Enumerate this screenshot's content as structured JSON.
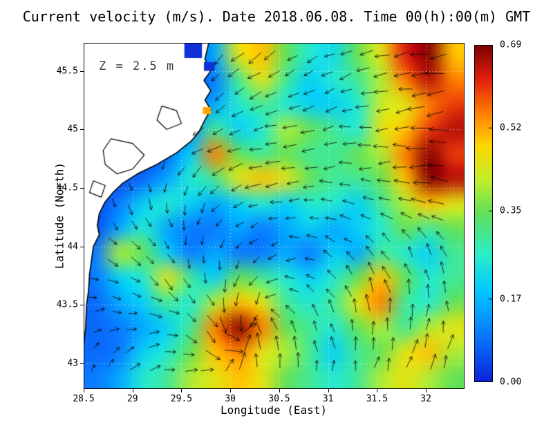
{
  "title": "Current velocity (m/s). Date 2018.06.08. Time 00(h):00(m) GMT",
  "annotation": "Z = 2.5 m",
  "axes": {
    "x": {
      "label": "Longitude (East)",
      "ticks": [
        {
          "label": "28.5",
          "value": 28.5
        },
        {
          "label": "29",
          "value": 29
        },
        {
          "label": "29.5",
          "value": 29.5
        },
        {
          "label": "30",
          "value": 30
        },
        {
          "label": "30.5",
          "value": 30.5
        },
        {
          "label": "31",
          "value": 31
        },
        {
          "label": "31.5",
          "value": 31.5
        },
        {
          "label": "32",
          "value": 32
        }
      ]
    },
    "y": {
      "label": "Latitude (North)",
      "ticks": [
        {
          "label": "43",
          "value": 43
        },
        {
          "label": "43.5",
          "value": 43.5
        },
        {
          "label": "44",
          "value": 44
        },
        {
          "label": "44.5",
          "value": 44.5
        },
        {
          "label": "45",
          "value": 45
        },
        {
          "label": "45.5",
          "value": 45.5
        }
      ]
    }
  },
  "colorbar": {
    "min": 0,
    "max": 0.69,
    "ticks": [
      {
        "label": "0.69",
        "value": 0.69
      },
      {
        "label": "0.52",
        "value": 0.52
      },
      {
        "label": "0.35",
        "value": 0.35
      },
      {
        "label": "0.17",
        "value": 0.17
      },
      {
        "label": "0.00",
        "value": 0.0
      }
    ],
    "colormap": [
      {
        "t": 0.0,
        "c": "#0a22dc"
      },
      {
        "t": 0.14,
        "c": "#0a78ff"
      },
      {
        "t": 0.27,
        "c": "#00c8ff"
      },
      {
        "t": 0.38,
        "c": "#2ceec8"
      },
      {
        "t": 0.5,
        "c": "#5fe05a"
      },
      {
        "t": 0.6,
        "c": "#c2ee2c"
      },
      {
        "t": 0.7,
        "c": "#ffd800"
      },
      {
        "t": 0.8,
        "c": "#ff7d00"
      },
      {
        "t": 0.9,
        "c": "#e11e0f"
      },
      {
        "t": 1.0,
        "c": "#7a0000"
      }
    ]
  },
  "chart_data": {
    "type": "heatmap",
    "subtype": "velocity-field-with-quiver-arrows",
    "title": "Current velocity (m/s). Date 2018.06.08. Time 00(h):00(m) GMT",
    "depth_label": "Z = 2.5 m",
    "units": "m/s",
    "xlabel": "Longitude (East)",
    "ylabel": "Latitude (North)",
    "xlim": [
      28.5,
      32.395
    ],
    "ylim": [
      42.78,
      45.74
    ],
    "value_range": [
      0,
      0.69
    ],
    "grid": true,
    "velocity_grid": {
      "lon_range": [
        28.5,
        32.395
      ],
      "lat_range": [
        42.78,
        45.74
      ],
      "ncols": 16,
      "nrows": 14,
      "values": [
        [
          0.05,
          0.05,
          0.05,
          0.05,
          0.08,
          0.15,
          0.45,
          0.5,
          0.35,
          0.25,
          0.22,
          0.35,
          0.45,
          0.62,
          0.68,
          0.5
        ],
        [
          0.05,
          0.05,
          0.05,
          0.05,
          0.08,
          0.1,
          0.3,
          0.45,
          0.3,
          0.2,
          0.25,
          0.3,
          0.4,
          0.55,
          0.65,
          0.55
        ],
        [
          0.05,
          0.05,
          0.05,
          0.05,
          0.1,
          0.15,
          0.25,
          0.3,
          0.25,
          0.2,
          0.2,
          0.25,
          0.42,
          0.45,
          0.55,
          0.6
        ],
        [
          0.05,
          0.05,
          0.05,
          0.05,
          0.12,
          0.3,
          0.2,
          0.25,
          0.4,
          0.35,
          0.3,
          0.25,
          0.45,
          0.5,
          0.6,
          0.65
        ],
        [
          0.05,
          0.05,
          0.05,
          0.08,
          0.2,
          0.55,
          0.35,
          0.3,
          0.35,
          0.3,
          0.3,
          0.35,
          0.4,
          0.55,
          0.68,
          0.6
        ],
        [
          0.05,
          0.05,
          0.08,
          0.15,
          0.25,
          0.3,
          0.45,
          0.5,
          0.45,
          0.35,
          0.3,
          0.3,
          0.35,
          0.5,
          0.68,
          0.65
        ],
        [
          0.05,
          0.1,
          0.2,
          0.25,
          0.2,
          0.15,
          0.2,
          0.25,
          0.2,
          0.25,
          0.25,
          0.2,
          0.3,
          0.4,
          0.5,
          0.45
        ],
        [
          0.05,
          0.15,
          0.25,
          0.15,
          0.1,
          0.1,
          0.15,
          0.1,
          0.15,
          0.2,
          0.15,
          0.2,
          0.25,
          0.35,
          0.3,
          0.35
        ],
        [
          0.1,
          0.4,
          0.35,
          0.2,
          0.1,
          0.15,
          0.1,
          0.1,
          0.15,
          0.1,
          0.2,
          0.15,
          0.3,
          0.25,
          0.2,
          0.3
        ],
        [
          0.1,
          0.2,
          0.25,
          0.45,
          0.3,
          0.2,
          0.35,
          0.3,
          0.25,
          0.2,
          0.25,
          0.35,
          0.5,
          0.35,
          0.25,
          0.3
        ],
        [
          0.08,
          0.15,
          0.2,
          0.3,
          0.25,
          0.4,
          0.5,
          0.45,
          0.3,
          0.25,
          0.3,
          0.45,
          0.55,
          0.3,
          0.25,
          0.35
        ],
        [
          0.08,
          0.1,
          0.15,
          0.2,
          0.3,
          0.55,
          0.68,
          0.55,
          0.35,
          0.3,
          0.25,
          0.35,
          0.4,
          0.3,
          0.4,
          0.45
        ],
        [
          0.08,
          0.1,
          0.2,
          0.25,
          0.35,
          0.5,
          0.55,
          0.45,
          0.4,
          0.3,
          0.2,
          0.3,
          0.35,
          0.45,
          0.5,
          0.4
        ],
        [
          0.1,
          0.15,
          0.25,
          0.3,
          0.4,
          0.45,
          0.5,
          0.45,
          0.35,
          0.3,
          0.25,
          0.3,
          0.4,
          0.45,
          0.4,
          0.35
        ]
      ]
    },
    "direction_grid_deg": {
      "note": "flow direction, degrees CCW from east",
      "ncols": 10,
      "nrows": 9,
      "angles": [
        [
          270,
          265,
          250,
          235,
          220,
          210,
          205,
          200,
          195,
          190
        ],
        [
          275,
          265,
          245,
          225,
          210,
          205,
          200,
          195,
          190,
          185
        ],
        [
          285,
          275,
          235,
          205,
          195,
          190,
          190,
          185,
          183,
          180
        ],
        [
          295,
          285,
          255,
          215,
          190,
          185,
          182,
          180,
          178,
          175
        ],
        [
          305,
          300,
          285,
          245,
          205,
          185,
          172,
          162,
          155,
          150
        ],
        [
          330,
          320,
          300,
          270,
          230,
          190,
          145,
          125,
          115,
          120
        ],
        [
          0,
          350,
          330,
          300,
          260,
          150,
          120,
          100,
          92,
          100
        ],
        [
          50,
          30,
          350,
          320,
          90,
          110,
          100,
          82,
          72,
          80
        ],
        [
          60,
          40,
          20,
          60,
          80,
          90,
          80,
          70,
          62,
          70
        ]
      ]
    },
    "coastline_lonlat": [
      [
        29.78,
        45.74
      ],
      [
        29.74,
        45.6
      ],
      [
        29.8,
        45.5
      ],
      [
        29.73,
        45.42
      ],
      [
        29.8,
        45.33
      ],
      [
        29.74,
        45.25
      ],
      [
        29.8,
        45.17
      ],
      [
        29.74,
        45.08
      ],
      [
        29.68,
        44.98
      ],
      [
        29.6,
        44.9
      ],
      [
        29.45,
        44.8
      ],
      [
        29.25,
        44.7
      ],
      [
        29.05,
        44.62
      ],
      [
        28.9,
        44.54
      ],
      [
        28.8,
        44.46
      ],
      [
        28.72,
        44.38
      ],
      [
        28.66,
        44.28
      ],
      [
        28.64,
        44.18
      ],
      [
        28.66,
        44.1
      ],
      [
        28.6,
        44.0
      ],
      [
        28.58,
        43.88
      ],
      [
        28.56,
        43.76
      ],
      [
        28.55,
        43.62
      ],
      [
        28.53,
        43.5
      ],
      [
        28.52,
        43.3
      ],
      [
        28.5,
        43.16
      ]
    ],
    "lakes_lonlat": [
      [
        [
          28.78,
          44.92
        ],
        [
          29.0,
          44.88
        ],
        [
          29.12,
          44.78
        ],
        [
          29.0,
          44.66
        ],
        [
          28.84,
          44.62
        ],
        [
          28.72,
          44.7
        ],
        [
          28.7,
          44.82
        ]
      ],
      [
        [
          28.6,
          44.56
        ],
        [
          28.72,
          44.52
        ],
        [
          28.68,
          44.42
        ],
        [
          28.56,
          44.46
        ]
      ],
      [
        [
          29.3,
          45.2
        ],
        [
          29.45,
          45.16
        ],
        [
          29.5,
          45.05
        ],
        [
          29.35,
          45.0
        ],
        [
          29.25,
          45.08
        ]
      ]
    ],
    "water_patches": [
      {
        "lon0": 29.53,
        "lat0": 45.61,
        "lon1": 29.71,
        "lat1": 45.74,
        "color": "#0f2fd8"
      },
      {
        "lon0": 29.73,
        "lat0": 45.5,
        "lon1": 29.84,
        "lat1": 45.575,
        "color": "#0f2fd8"
      },
      {
        "lon0": 29.72,
        "lat0": 45.13,
        "lon1": 29.8,
        "lat1": 45.19,
        "color": "#ffa500"
      }
    ],
    "legend_position": "right-colorbar"
  }
}
